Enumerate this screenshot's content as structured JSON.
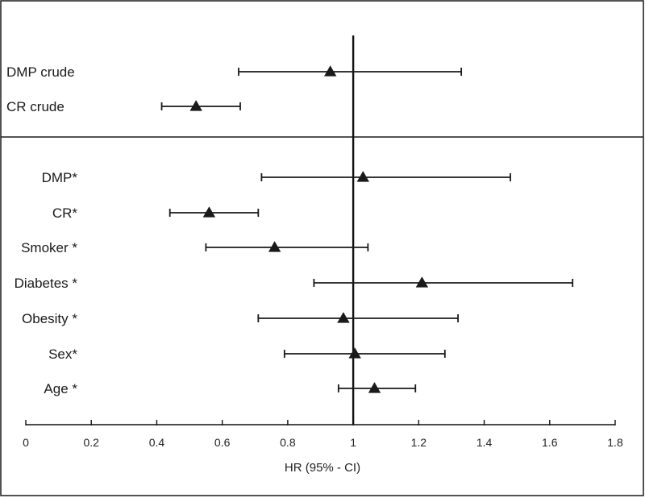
{
  "chart_data": {
    "type": "forest",
    "xlabel": "HR (95% - CI)",
    "xlim": [
      0,
      1.8
    ],
    "xticks": [
      0,
      0.2,
      0.4,
      0.6,
      0.8,
      1,
      1.2,
      1.4,
      1.6,
      1.8
    ],
    "xtick_labels": [
      "0",
      "0.2",
      "0.4",
      "0.6",
      "0.8",
      "1",
      "1.2",
      "1.4",
      "1.6",
      "1.8"
    ],
    "reference_line": 1,
    "marker": "triangle",
    "marker_color": "#1a1a1a",
    "line_color": "#1a1a1a",
    "panels": [
      {
        "name": "crude",
        "rows": [
          {
            "label": "DMP crude",
            "hr": 0.93,
            "lower": 0.65,
            "upper": 1.33
          },
          {
            "label": "CR crude",
            "hr": 0.52,
            "lower": 0.415,
            "upper": 0.655
          }
        ]
      },
      {
        "name": "adjusted",
        "rows": [
          {
            "label": "DMP*",
            "hr": 1.03,
            "lower": 0.72,
            "upper": 1.48
          },
          {
            "label": "CR*",
            "hr": 0.56,
            "lower": 0.44,
            "upper": 0.71
          },
          {
            "label": "Smoker *",
            "hr": 0.76,
            "lower": 0.55,
            "upper": 1.045
          },
          {
            "label": "Diabetes *",
            "hr": 1.21,
            "lower": 0.88,
            "upper": 1.67
          },
          {
            "label": "Obesity *",
            "hr": 0.97,
            "lower": 0.71,
            "upper": 1.32
          },
          {
            "label": "Sex*",
            "hr": 1.005,
            "lower": 0.79,
            "upper": 1.28
          },
          {
            "label": "Age *",
            "hr": 1.065,
            "lower": 0.955,
            "upper": 1.19
          }
        ]
      }
    ]
  }
}
